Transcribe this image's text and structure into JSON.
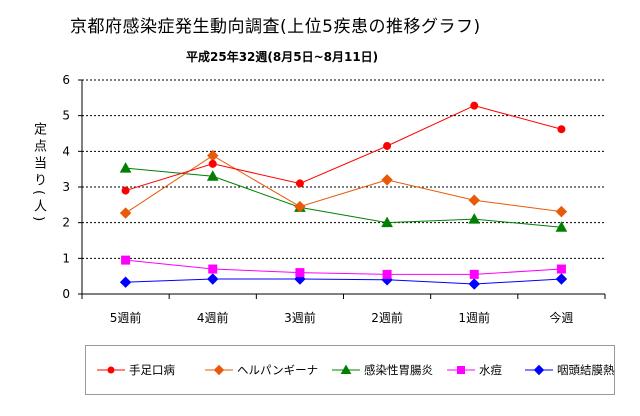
{
  "title": "京都府感染症発生動向調査(上位5疾患の推移グラフ)",
  "subtitle": "平成25年32週(8月5日~8月11日)",
  "chart_data": {
    "type": "line",
    "title": "京都府感染症発生動向調査(上位5疾患の推移グラフ)",
    "subtitle": "平成25年32週(8月5日~8月11日)",
    "ylabel": "定点当り(人)",
    "xlabel": "",
    "categories": [
      "5週前",
      "4週前",
      "3週前",
      "2週前",
      "1週前",
      "今週"
    ],
    "ylim": [
      0,
      6
    ],
    "yticks": [
      0,
      1,
      2,
      3,
      4,
      5,
      6
    ],
    "grid": "horizontal dotted",
    "legend_position": "bottom",
    "series": [
      {
        "name": "手足口病",
        "color": "#ff0000",
        "marker": "circle",
        "values": [
          2.9,
          3.65,
          3.1,
          4.15,
          5.28,
          4.62
        ]
      },
      {
        "name": "ヘルパンギーナ",
        "color": "#e85a0a",
        "marker": "diamond",
        "values": [
          2.27,
          3.88,
          2.45,
          3.2,
          2.63,
          2.31
        ]
      },
      {
        "name": "感染性胃腸炎",
        "color": "#008000",
        "marker": "triangle",
        "values": [
          3.53,
          3.3,
          2.43,
          2.0,
          2.1,
          1.87
        ]
      },
      {
        "name": "水痘",
        "color": "#ff00ff",
        "marker": "square",
        "values": [
          0.95,
          0.7,
          0.6,
          0.55,
          0.55,
          0.7
        ]
      },
      {
        "name": "咽頭結膜熱",
        "color": "#0000ff",
        "marker": "diamond",
        "values": [
          0.33,
          0.42,
          0.42,
          0.4,
          0.28,
          0.42
        ]
      }
    ]
  }
}
